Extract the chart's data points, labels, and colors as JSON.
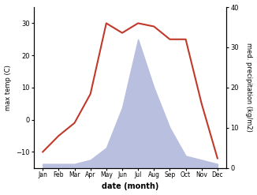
{
  "months": [
    "Jan",
    "Feb",
    "Mar",
    "Apr",
    "May",
    "Jun",
    "Jul",
    "Aug",
    "Sep",
    "Oct",
    "Nov",
    "Dec"
  ],
  "temperature": [
    -10,
    -5,
    -1,
    8,
    30,
    27,
    30,
    29,
    25,
    25,
    5,
    -12
  ],
  "precipitation": [
    1,
    1,
    1,
    2,
    5,
    15,
    32,
    20,
    10,
    3,
    2,
    1
  ],
  "temp_color": "#c0392b",
  "precip_fill_color": "#b8bfdf",
  "ylabel_left": "max temp (C)",
  "ylabel_right": "med. precipitation (kg/m2)",
  "xlabel": "date (month)",
  "ylim_left": [
    -15,
    35
  ],
  "ylim_right": [
    0,
    40
  ],
  "yticks_left": [
    -10,
    0,
    10,
    20,
    30
  ],
  "yticks_right": [
    0,
    10,
    20,
    30,
    40
  ],
  "bg_color": "#ffffff"
}
